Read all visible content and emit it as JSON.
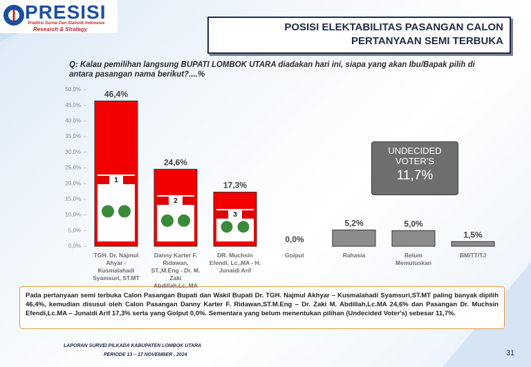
{
  "logo": {
    "name": "PRESISI",
    "tagline": "Prediksi Survei Dan Statistik Indonesia",
    "subtitle": "Research & Strategy"
  },
  "header": {
    "title_line1": "POSISI ELEKTABILITAS PASANGAN CALON",
    "title_line2": "PERTANYAAN SEMI TERBUKA"
  },
  "candidate_numbers": [
    "1",
    "2",
    "3"
  ],
  "summary": "Pada pertanyaan semi terbuka Calon Pasangan Bupati dan Wakil Bupati Dr. TGH. Najmul Akhyar – Kusmalahadi Syamsuri,ST.MT paling banyak dipilih 46,4%, kemudian disusul oleh Calon Pasangan Danny Karter F. Ridawan,ST.M.Eng – Dr. Zaki M. Abdillah,Lc.MA 24,6% dan Pasangan Dr. Muchsin Efendi,Lc.MA – Junaidi Arif 17,3% serta yang Golput 0,0%. Sementara yang belum menentukan pilihan (Undecided Voter's) sebesar 11,7%.",
  "footer": {
    "line1": "LAPORAN SURVEI PILKADA KABUPATEN LOMBOK UTARA",
    "line2": "PERIODE 13 – 17 NOVEMBER , 2024"
  },
  "page_number": "31",
  "chart_data": {
    "type": "bar",
    "title": "Q: Kalau pemilihan langsung BUPATI LOMBOK UTARA diadakan hari ini, siapa yang akan Ibu/Bapak pilih di antara pasangan nama berikut?....%",
    "categories": [
      "TGH. Dr. Najmul Ahyar - Kusmalahadi Syamsuri, ST.MT",
      "Danny Karter F. Ridawan, ST.,M.Eng - Dr. M. Zaki Abdillah,Lc,.MA",
      "DR. Muchsin Efendi, Lc.,MA - H. Junaidi Arif",
      "Golput",
      "Rahasia",
      "Belum Memutuskan",
      "BM/TT/TJ"
    ],
    "values": [
      46.4,
      24.6,
      17.3,
      0.0,
      5.2,
      5.0,
      1.5
    ],
    "value_labels": [
      "46,4%",
      "24,6%",
      "17,3%",
      "0,0%",
      "5,2%",
      "5,0%",
      "1,5%"
    ],
    "colors": [
      "#f20000",
      "#f20000",
      "#f20000",
      "#8c8c8c",
      "#8c8c8c",
      "#8c8c8c",
      "#8c8c8c"
    ],
    "ylim": [
      0,
      50
    ],
    "yticks": [
      {
        "value": 0,
        "label": "0,0%"
      },
      {
        "value": 5,
        "label": "5,0%"
      },
      {
        "value": 10,
        "label": "10,0%"
      },
      {
        "value": 15,
        "label": "15,0%"
      },
      {
        "value": 20,
        "label": "20,0%"
      },
      {
        "value": 25,
        "label": "25,0%"
      },
      {
        "value": 30,
        "label": "30,0%"
      },
      {
        "value": 35,
        "label": "35,0%"
      },
      {
        "value": 40,
        "label": "40,0%"
      },
      {
        "value": 45,
        "label": "45,0%"
      },
      {
        "value": 50,
        "label": "50,0%"
      }
    ],
    "grid": false,
    "annotation": {
      "text_line1": "UNDECIDED",
      "text_line2": "VOTER'S",
      "value_label": "11,7%"
    }
  }
}
